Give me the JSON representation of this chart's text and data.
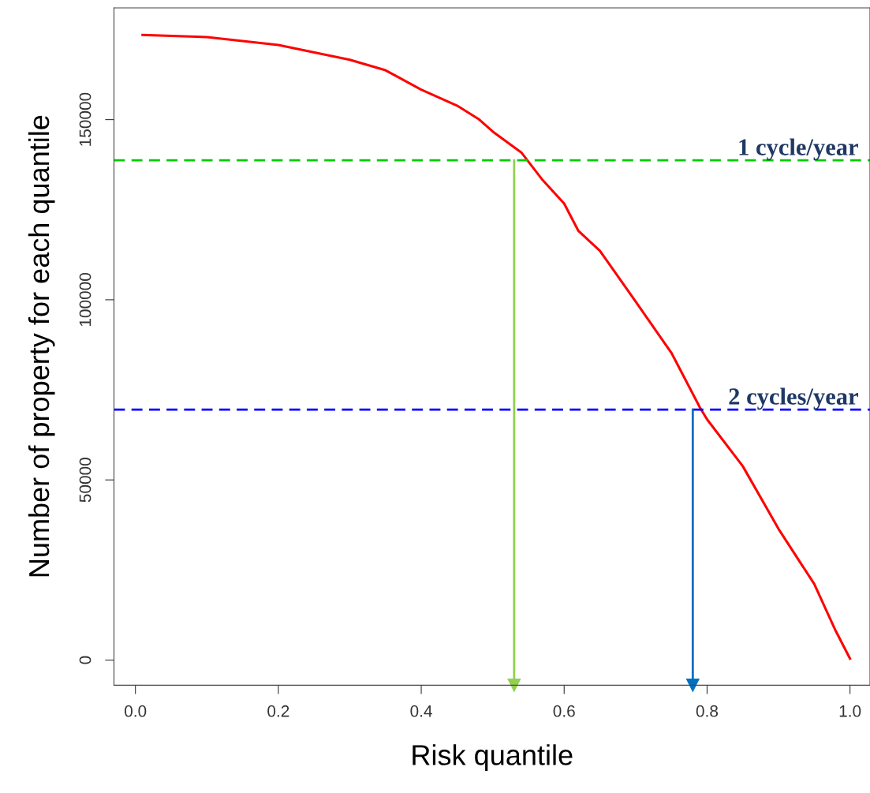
{
  "chart_data": {
    "type": "line",
    "xlabel": "Risk quantile",
    "ylabel": "Number of property for each quantile",
    "x": [
      0.01,
      0.1,
      0.2,
      0.3,
      0.35,
      0.4,
      0.45,
      0.48,
      0.5,
      0.54,
      0.57,
      0.6,
      0.62,
      0.65,
      0.7,
      0.75,
      0.79,
      0.8,
      0.85,
      0.9,
      0.95,
      0.98,
      1.0
    ],
    "series": [
      {
        "color": "#ff0000",
        "values": [
          173500,
          172900,
          170700,
          166600,
          163700,
          158300,
          153900,
          150200,
          146700,
          140900,
          133200,
          126700,
          119100,
          113600,
          99500,
          85300,
          70100,
          66800,
          53800,
          36400,
          21100,
          8100,
          400
        ]
      }
    ],
    "xlim": [
      -0.03,
      1.028
    ],
    "ylim": [
      -6960,
      181000
    ],
    "xticks": [
      {
        "value": 0,
        "label": "0.0"
      },
      0.2,
      0.4,
      0.6,
      0.8,
      {
        "value": 1,
        "label": "1.0"
      }
    ],
    "yticks": [
      0,
      50000,
      100000,
      150000
    ],
    "ref_lines": [
      {
        "axis": "y",
        "value": 138700,
        "label": "1 cycle/year",
        "color": "#00cc00",
        "line_style": "dashed"
      },
      {
        "axis": "y",
        "value": 69500,
        "label": "2 cycles/year",
        "color": "#0000ff",
        "line_style": "dashed"
      },
      {
        "axis": "x",
        "value": 0.53,
        "color": "#92d050",
        "line_style": "solid"
      },
      {
        "axis": "x",
        "value": 0.78,
        "color": "#0070c0",
        "line_style": "solid"
      }
    ],
    "grid": false,
    "legend": false,
    "marker": "none",
    "line_style": "solid"
  }
}
